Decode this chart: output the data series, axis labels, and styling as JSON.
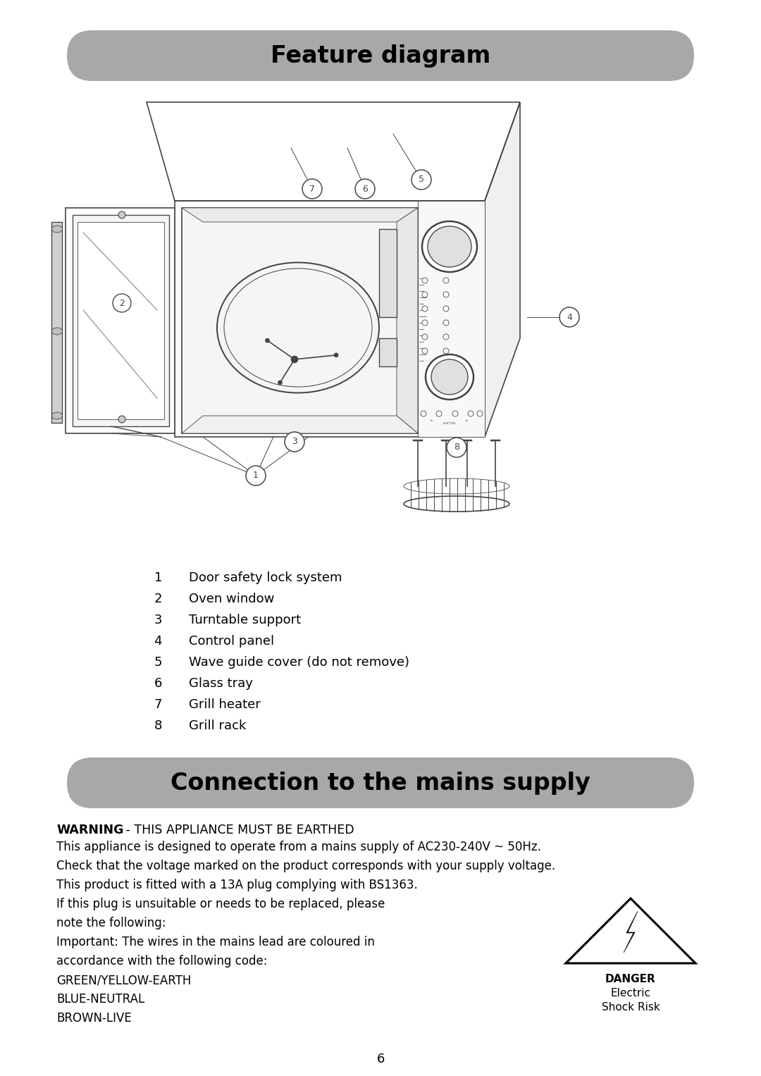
{
  "page_bg": "#ffffff",
  "header1_text": "Feature diagram",
  "header1_bg": "#a8a8a8",
  "header2_text": "Connection to the mains supply",
  "header2_bg": "#a8a8a8",
  "features_list": [
    [
      "1",
      "Door safety lock system"
    ],
    [
      "2",
      "Oven window"
    ],
    [
      "3",
      "Turntable support"
    ],
    [
      "4",
      "Control panel"
    ],
    [
      "5",
      "Wave guide cover (do not remove)"
    ],
    [
      "6",
      "Glass tray"
    ],
    [
      "7",
      "Grill heater"
    ],
    [
      "8",
      "Grill rack"
    ]
  ],
  "warning_bold": "WARNING",
  "warning_text": "   - THIS APPLIANCE MUST BE EARTHED",
  "body_text": [
    {
      "text": "This appliance is designed to operate from a mains supply of AC230-240V ~ 50Hz.",
      "bold": false
    },
    {
      "text": "Check that the voltage marked on the product corresponds with your supply voltage.",
      "bold": false
    },
    {
      "text": "This product is fitted with a 13A plug complying with BS1363.",
      "bold": false
    },
    {
      "text": "If this plug is unsuitable or needs to be replaced, please",
      "bold": false
    },
    {
      "text": "note the following:",
      "bold": false
    },
    {
      "text": "Important: The wires in the mains lead are coloured in",
      "bold": false
    },
    {
      "text": "accordance with the following code:",
      "bold": false
    },
    {
      "text": "GREEN/YELLOW-EARTH",
      "bold": false
    },
    {
      "text": "BLUE-NEUTRAL",
      "bold": false
    },
    {
      "text": "BROWN-LIVE",
      "bold": false
    }
  ],
  "danger_text": [
    "DANGER",
    "Electric",
    "Shock Risk"
  ],
  "page_number": "6"
}
